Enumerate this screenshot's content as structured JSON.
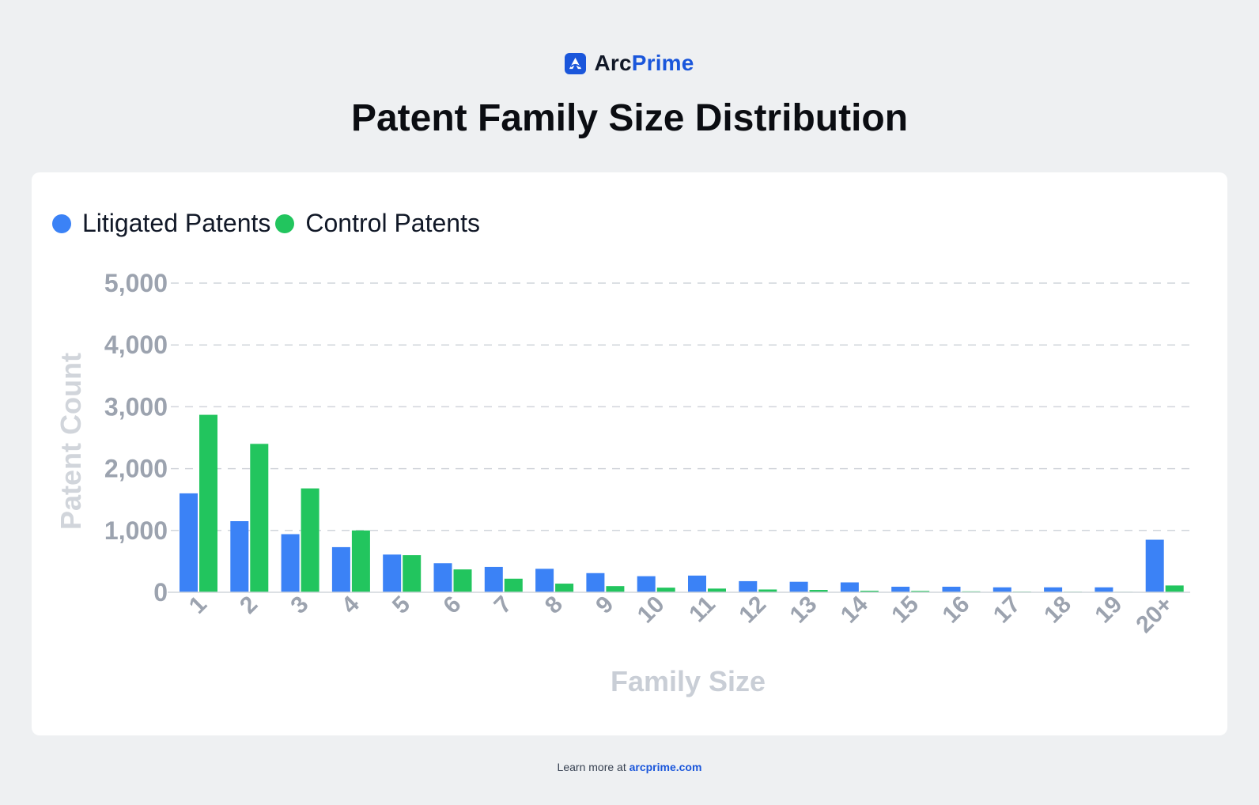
{
  "brand": {
    "name_part1": "Arc",
    "name_part2": "Prime",
    "accent": "#1a56db"
  },
  "page_title": "Patent Family Size Distribution",
  "footer": {
    "text": "Learn more at",
    "link": "arcprime.com"
  },
  "chart_data": {
    "type": "bar",
    "title": "Patent Family Size Distribution",
    "xlabel": "Family Size",
    "ylabel": "Patent Count",
    "ylim": [
      0,
      5000
    ],
    "yticks": [
      0,
      1000,
      2000,
      3000,
      4000,
      5000
    ],
    "ytick_labels": [
      "0",
      "1,000",
      "2,000",
      "3,000",
      "4,000",
      "5,000"
    ],
    "grid": true,
    "legend_position": "top-left",
    "categories": [
      "1",
      "2",
      "3",
      "4",
      "5",
      "6",
      "7",
      "8",
      "9",
      "10",
      "11",
      "12",
      "13",
      "14",
      "15",
      "16",
      "17",
      "18",
      "19",
      "20+"
    ],
    "series": [
      {
        "name": "Litigated Patents",
        "color": "#3b82f6",
        "values": [
          1600,
          1150,
          940,
          730,
          610,
          470,
          410,
          380,
          310,
          260,
          270,
          180,
          170,
          160,
          90,
          90,
          80,
          80,
          80,
          850
        ]
      },
      {
        "name": "Control Patents",
        "color": "#22c55e",
        "values": [
          2870,
          2400,
          1680,
          1000,
          600,
          370,
          220,
          140,
          100,
          75,
          60,
          45,
          38,
          25,
          22,
          15,
          12,
          10,
          8,
          110
        ]
      }
    ]
  }
}
